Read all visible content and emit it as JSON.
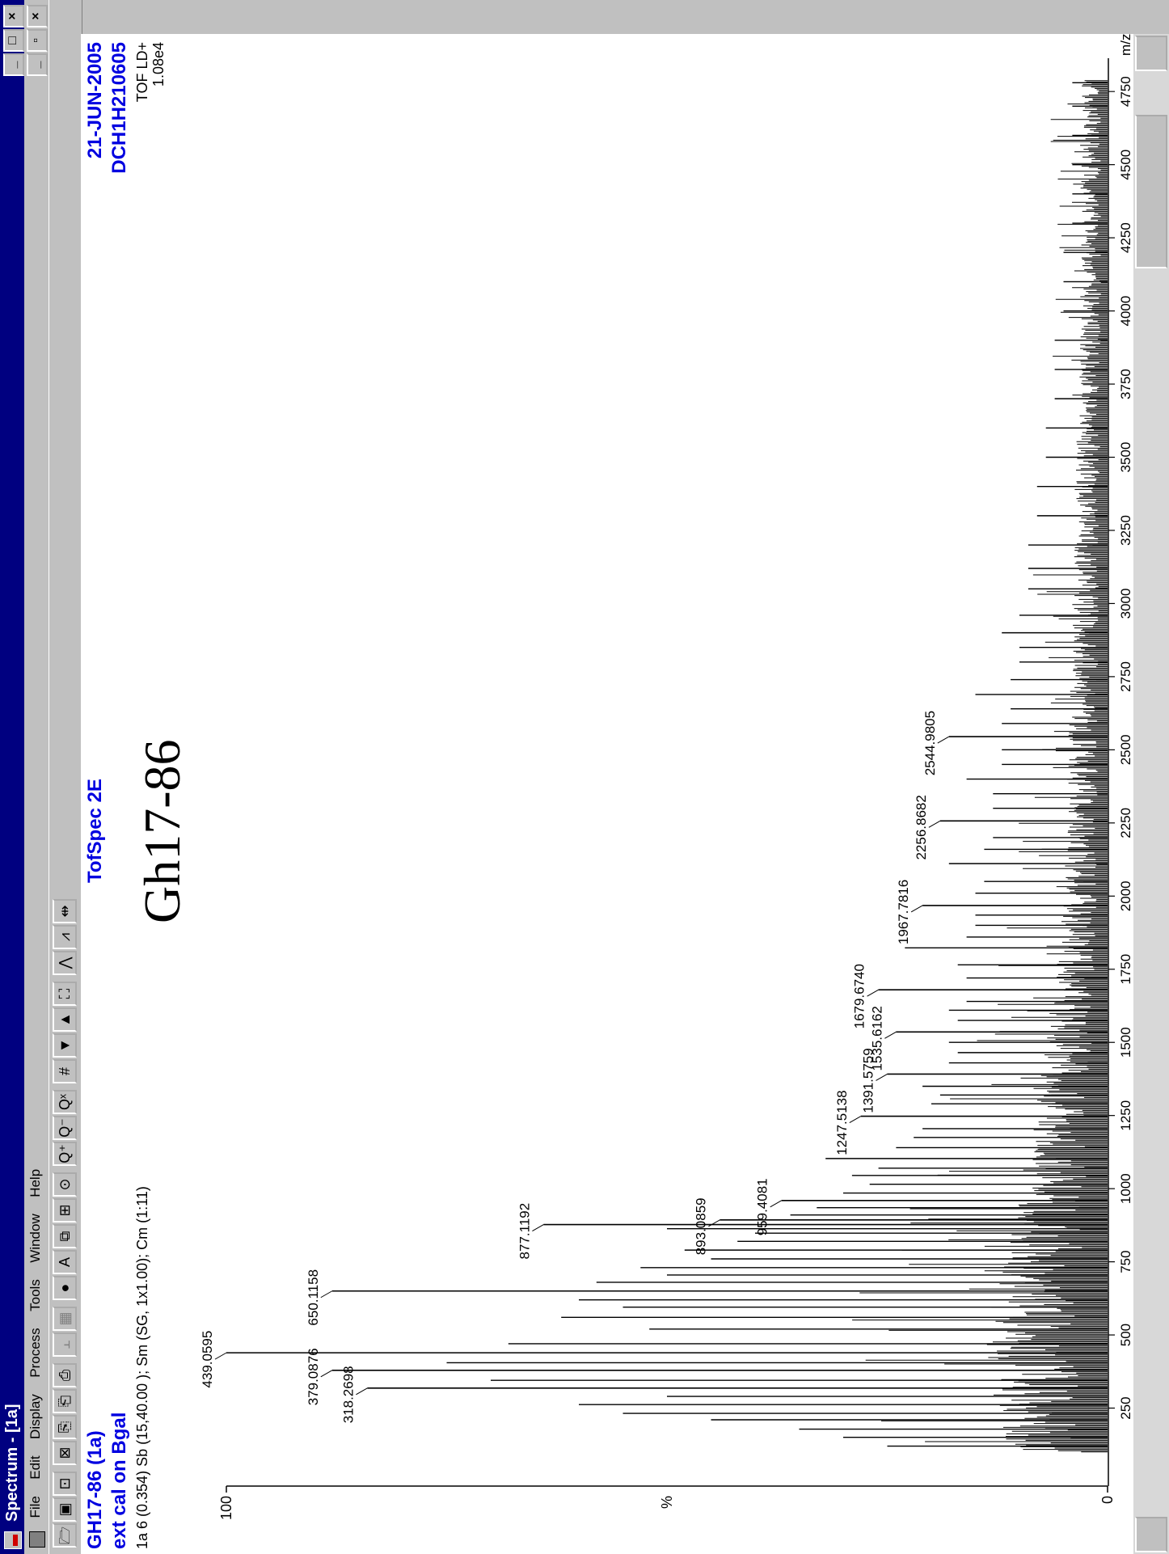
{
  "window": {
    "title": "Spectrum - [1a]",
    "min": "_",
    "max": "□",
    "close": "×",
    "mdi_min": "_",
    "mdi_restore": "▫",
    "mdi_close": "×"
  },
  "menu": [
    "File",
    "Edit",
    "Display",
    "Process",
    "Tools",
    "Window",
    "Help"
  ],
  "toolbar": [
    {
      "icon": "open-folder-icon",
      "glyph": "🗁"
    },
    {
      "icon": "new-window-icon",
      "glyph": "▣"
    },
    {
      "icon": "chromatogram-icon",
      "glyph": "⊡"
    },
    {
      "icon": "map-icon",
      "glyph": "⊠"
    },
    {
      "icon": "copy-icon",
      "glyph": "⎘"
    },
    {
      "icon": "copy-list-icon",
      "glyph": "⎗"
    },
    {
      "icon": "print-icon",
      "glyph": "⎙"
    },
    {
      "icon": "bar-display-icon",
      "glyph": "⫠",
      "disabled": true
    },
    {
      "icon": "list-display-icon",
      "glyph": "▦",
      "disabled": true
    },
    {
      "icon": "library-globe-icon",
      "glyph": "●"
    },
    {
      "icon": "annotate-icon",
      "glyph": "A"
    },
    {
      "icon": "windows-icon",
      "glyph": "⧉"
    },
    {
      "icon": "tree-icon",
      "glyph": "⊞"
    },
    {
      "icon": "clock-icon",
      "glyph": "⊙"
    },
    {
      "icon": "zoom-in-icon",
      "glyph": "Q⁺"
    },
    {
      "icon": "zoom-out-icon",
      "glyph": "Q⁻"
    },
    {
      "icon": "zoom-reset-icon",
      "glyph": "Qˣ"
    },
    {
      "icon": "peak-label-icon",
      "glyph": "#"
    },
    {
      "icon": "arrow-down-icon",
      "glyph": "▼"
    },
    {
      "icon": "arrow-up-icon",
      "glyph": "▲"
    },
    {
      "icon": "fit-icon",
      "glyph": "⛶"
    },
    {
      "icon": "smooth-icon",
      "glyph": "⋀"
    },
    {
      "icon": "center-icon",
      "glyph": "⩘"
    },
    {
      "icon": "integrate-icon",
      "glyph": "⇹"
    }
  ],
  "header": {
    "sample": "GH17-86 (1a)",
    "calibration": "ext cal on Bgal",
    "scan_info": "1a 6 (0.354) Sb (15,40.00 ); Sm (SG, 1x1.00); Cm (1:11)",
    "instrument": "TofSpec 2E",
    "date": "21-JUN-2005",
    "file": "DCH1H210605",
    "mode": "TOF LD+",
    "intensity": "1.08e4",
    "annotation": "Gh17-86"
  },
  "colors": {
    "title_blue": "#0000e0",
    "titlebar": "#000080",
    "chrome": "#c0c0c0"
  },
  "chart_data": {
    "type": "bar",
    "xlabel": "m/z",
    "ylabel": "%",
    "xlim": [
      0,
      4850
    ],
    "ylim": [
      0,
      100
    ],
    "xticks": [
      250,
      500,
      750,
      1000,
      1250,
      1500,
      1750,
      2000,
      2250,
      2500,
      2750,
      3000,
      3250,
      3500,
      3750,
      4000,
      4250,
      4500,
      4750
    ],
    "yticks": [
      "100",
      "%",
      "0"
    ],
    "labeled_peaks": [
      {
        "mz": 318.2698,
        "label": "318.2698",
        "y": 84
      },
      {
        "mz": 379.0876,
        "label": "379.0876",
        "y": 88
      },
      {
        "mz": 439.0595,
        "label": "439.0595",
        "y": 100
      },
      {
        "mz": 650.1158,
        "label": "650.1158",
        "y": 88
      },
      {
        "mz": 877.1192,
        "label": "877.1192",
        "y": 64
      },
      {
        "mz": 893.0859,
        "label": "893.0859",
        "y": 44
      },
      {
        "mz": 959.4081,
        "label": "959.4081",
        "y": 37
      },
      {
        "mz": 1247.5138,
        "label": "1247.5138",
        "y": 28
      },
      {
        "mz": 1391.5759,
        "label": "1391.5759",
        "y": 25
      },
      {
        "mz": 1535.6162,
        "label": "1535.6162",
        "y": 24
      },
      {
        "mz": 1679.674,
        "label": "1679.6740",
        "y": 26
      },
      {
        "mz": 1967.7816,
        "label": "1967.7816",
        "y": 21
      },
      {
        "mz": 2256.8682,
        "label": "2256.8682",
        "y": 19
      },
      {
        "mz": 2544.9805,
        "label": "2544.9805",
        "y": 18
      }
    ],
    "unlabeled_peaks": [
      {
        "mz": 120,
        "y": 25
      },
      {
        "mz": 150,
        "y": 30
      },
      {
        "mz": 178,
        "y": 35
      },
      {
        "mz": 210,
        "y": 45
      },
      {
        "mz": 232,
        "y": 55
      },
      {
        "mz": 262,
        "y": 60
      },
      {
        "mz": 290,
        "y": 50
      },
      {
        "mz": 345,
        "y": 70
      },
      {
        "mz": 405,
        "y": 75
      },
      {
        "mz": 470,
        "y": 68
      },
      {
        "mz": 520,
        "y": 52
      },
      {
        "mz": 560,
        "y": 62
      },
      {
        "mz": 595,
        "y": 55
      },
      {
        "mz": 620,
        "y": 60
      },
      {
        "mz": 680,
        "y": 58
      },
      {
        "mz": 705,
        "y": 50
      },
      {
        "mz": 730,
        "y": 53
      },
      {
        "mz": 760,
        "y": 45
      },
      {
        "mz": 790,
        "y": 48
      },
      {
        "mz": 820,
        "y": 42
      },
      {
        "mz": 848,
        "y": 40
      },
      {
        "mz": 863,
        "y": 50
      },
      {
        "mz": 910,
        "y": 36
      },
      {
        "mz": 935,
        "y": 33
      },
      {
        "mz": 985,
        "y": 30
      },
      {
        "mz": 1015,
        "y": 27
      },
      {
        "mz": 1045,
        "y": 29
      },
      {
        "mz": 1070,
        "y": 26
      },
      {
        "mz": 1103,
        "y": 32
      },
      {
        "mz": 1140,
        "y": 24
      },
      {
        "mz": 1175,
        "y": 22
      },
      {
        "mz": 1205,
        "y": 21
      },
      {
        "mz": 1290,
        "y": 20
      },
      {
        "mz": 1320,
        "y": 19
      },
      {
        "mz": 1350,
        "y": 21
      },
      {
        "mz": 1430,
        "y": 18
      },
      {
        "mz": 1465,
        "y": 17
      },
      {
        "mz": 1500,
        "y": 18
      },
      {
        "mz": 1575,
        "y": 17
      },
      {
        "mz": 1610,
        "y": 18
      },
      {
        "mz": 1640,
        "y": 16
      },
      {
        "mz": 1720,
        "y": 16
      },
      {
        "mz": 1765,
        "y": 17
      },
      {
        "mz": 1823,
        "y": 23
      },
      {
        "mz": 1860,
        "y": 16
      },
      {
        "mz": 1900,
        "y": 15
      },
      {
        "mz": 1935,
        "y": 15
      },
      {
        "mz": 2010,
        "y": 15
      },
      {
        "mz": 2050,
        "y": 14
      },
      {
        "mz": 2111,
        "y": 18
      },
      {
        "mz": 2160,
        "y": 14
      },
      {
        "mz": 2200,
        "y": 13
      },
      {
        "mz": 2300,
        "y": 13
      },
      {
        "mz": 2350,
        "y": 13
      },
      {
        "mz": 2400,
        "y": 16
      },
      {
        "mz": 2450,
        "y": 12
      },
      {
        "mz": 2500,
        "y": 12
      },
      {
        "mz": 2590,
        "y": 12
      },
      {
        "mz": 2640,
        "y": 11
      },
      {
        "mz": 2689,
        "y": 15
      },
      {
        "mz": 2740,
        "y": 11
      },
      {
        "mz": 2800,
        "y": 10
      },
      {
        "mz": 2850,
        "y": 10
      },
      {
        "mz": 2900,
        "y": 12
      },
      {
        "mz": 2960,
        "y": 10
      },
      {
        "mz": 3050,
        "y": 9
      },
      {
        "mz": 3120,
        "y": 9
      },
      {
        "mz": 3200,
        "y": 9
      },
      {
        "mz": 3300,
        "y": 8
      },
      {
        "mz": 3400,
        "y": 8
      },
      {
        "mz": 3500,
        "y": 7
      },
      {
        "mz": 3600,
        "y": 7
      },
      {
        "mz": 3700,
        "y": 6
      },
      {
        "mz": 3800,
        "y": 6
      },
      {
        "mz": 3900,
        "y": 6
      },
      {
        "mz": 4000,
        "y": 5
      },
      {
        "mz": 4100,
        "y": 5
      },
      {
        "mz": 4200,
        "y": 5
      },
      {
        "mz": 4300,
        "y": 4
      },
      {
        "mz": 4400,
        "y": 4
      },
      {
        "mz": 4500,
        "y": 4
      },
      {
        "mz": 4600,
        "y": 4
      },
      {
        "mz": 4700,
        "y": 4
      },
      {
        "mz": 4780,
        "y": 4
      }
    ],
    "noise_floor": [
      {
        "mz": 100,
        "y": 12
      },
      {
        "mz": 500,
        "y": 14
      },
      {
        "mz": 1000,
        "y": 10
      },
      {
        "mz": 1500,
        "y": 7
      },
      {
        "mz": 2000,
        "y": 5
      },
      {
        "mz": 3000,
        "y": 4
      },
      {
        "mz": 4000,
        "y": 3
      },
      {
        "mz": 4800,
        "y": 3
      }
    ]
  }
}
